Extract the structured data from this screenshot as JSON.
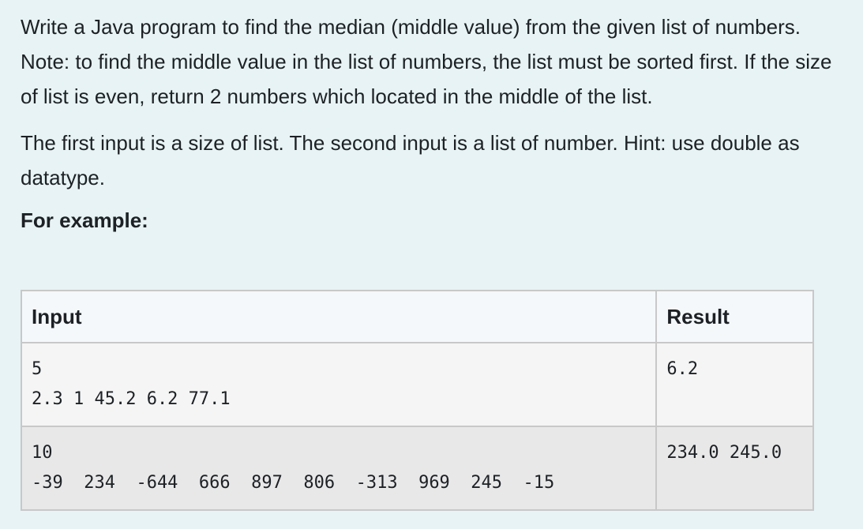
{
  "question": {
    "paragraph1": "Write a Java program to find the median (middle value) from the given list of numbers. Note: to find the middle value in the list of numbers, the list must be sorted first. If the size of list is even, return 2 numbers which located in the middle of the list.",
    "paragraph2": "The first input is a size of list. The second input is a list of number. Hint: use double as datatype.",
    "example_heading": "For example:"
  },
  "examples_table": {
    "headers": {
      "input": "Input",
      "result": "Result"
    },
    "rows": [
      {
        "input": "5\n2.3 1 45.2 6.2 77.1",
        "result": "6.2"
      },
      {
        "input": "10\n-39  234  -644  666  897  806  -313  969  245  -15",
        "result": "234.0 245.0"
      }
    ]
  }
}
